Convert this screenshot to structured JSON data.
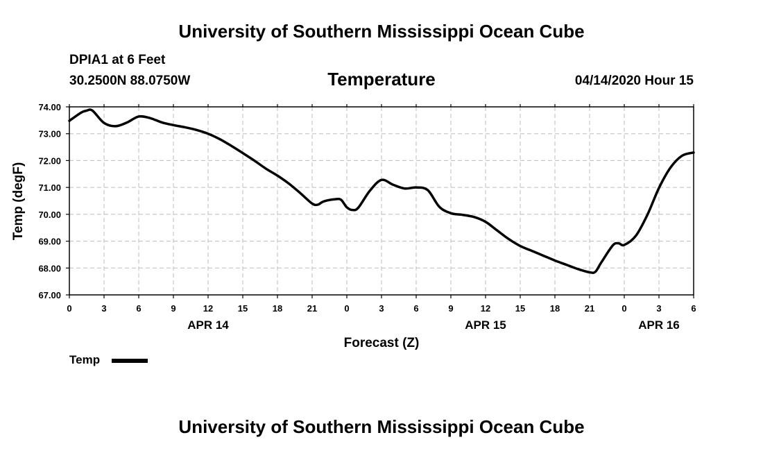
{
  "header": {
    "title": "University of Southern Mississippi Ocean Cube",
    "station": "DPIA1 at 6 Feet",
    "coordinates": "30.2500N 88.0750W",
    "subtitle": "Temperature",
    "datetime": "04/14/2020 Hour 15"
  },
  "footer": {
    "title": "University of Southern Mississippi Ocean Cube"
  },
  "legend": {
    "label": "Temp"
  },
  "chart_data": {
    "type": "line",
    "title": "Temperature",
    "xlabel": "Forecast (Z)",
    "ylabel": "Temp (degF)",
    "ylim": [
      67.0,
      74.0
    ],
    "xlim": [
      0,
      54
    ],
    "x_unit": "hours since APR 14 00Z",
    "grid": true,
    "legend_position": "bottom-left",
    "y_ticks": [
      "74.00",
      "73.00",
      "72.00",
      "71.00",
      "70.00",
      "69.00",
      "68.00",
      "67.00"
    ],
    "y_tick_values": [
      74,
      73,
      72,
      71,
      70,
      69,
      68,
      67
    ],
    "x_ticks": [
      {
        "hour": 0,
        "label": "0"
      },
      {
        "hour": 3,
        "label": "3"
      },
      {
        "hour": 6,
        "label": "6"
      },
      {
        "hour": 9,
        "label": "9"
      },
      {
        "hour": 12,
        "label": "12"
      },
      {
        "hour": 15,
        "label": "15"
      },
      {
        "hour": 18,
        "label": "18"
      },
      {
        "hour": 21,
        "label": "21"
      },
      {
        "hour": 24,
        "label": "0"
      },
      {
        "hour": 27,
        "label": "3"
      },
      {
        "hour": 30,
        "label": "6"
      },
      {
        "hour": 33,
        "label": "9"
      },
      {
        "hour": 36,
        "label": "12"
      },
      {
        "hour": 39,
        "label": "15"
      },
      {
        "hour": 42,
        "label": "18"
      },
      {
        "hour": 45,
        "label": "21"
      },
      {
        "hour": 48,
        "label": "0"
      },
      {
        "hour": 51,
        "label": "3"
      },
      {
        "hour": 54,
        "label": "6"
      }
    ],
    "date_labels": [
      {
        "hour": 12,
        "label": "APR 14"
      },
      {
        "hour": 36,
        "label": "APR 15"
      },
      {
        "hour": 51,
        "label": "APR 16"
      }
    ],
    "series": [
      {
        "name": "Temp",
        "color": "#000000",
        "x": [
          0,
          1,
          1.5,
          2,
          3,
          4,
          5,
          6,
          7,
          8,
          9,
          10,
          11,
          12,
          13,
          14,
          15,
          16,
          17,
          18,
          19,
          20,
          21,
          21.5,
          22,
          23,
          23.5,
          24,
          24.5,
          25,
          26,
          27,
          28,
          29,
          30,
          31,
          32,
          33,
          34,
          35,
          36,
          37,
          38,
          39,
          40,
          41,
          42,
          43,
          44,
          45,
          45.5,
          46,
          47,
          47.5,
          48,
          49,
          50,
          51,
          52,
          53,
          54
        ],
        "values": [
          73.48,
          73.78,
          73.86,
          73.86,
          73.4,
          73.28,
          73.42,
          73.64,
          73.58,
          73.42,
          73.32,
          73.24,
          73.14,
          73.0,
          72.8,
          72.55,
          72.28,
          72.0,
          71.7,
          71.44,
          71.14,
          70.78,
          70.4,
          70.36,
          70.48,
          70.56,
          70.54,
          70.26,
          70.16,
          70.25,
          70.88,
          71.28,
          71.1,
          70.96,
          71.0,
          70.9,
          70.28,
          70.04,
          69.98,
          69.9,
          69.72,
          69.4,
          69.08,
          68.82,
          68.64,
          68.46,
          68.28,
          68.12,
          67.96,
          67.84,
          67.86,
          68.2,
          68.84,
          68.92,
          68.86,
          69.2,
          69.98,
          70.98,
          71.74,
          72.18,
          72.3
        ]
      }
    ]
  }
}
